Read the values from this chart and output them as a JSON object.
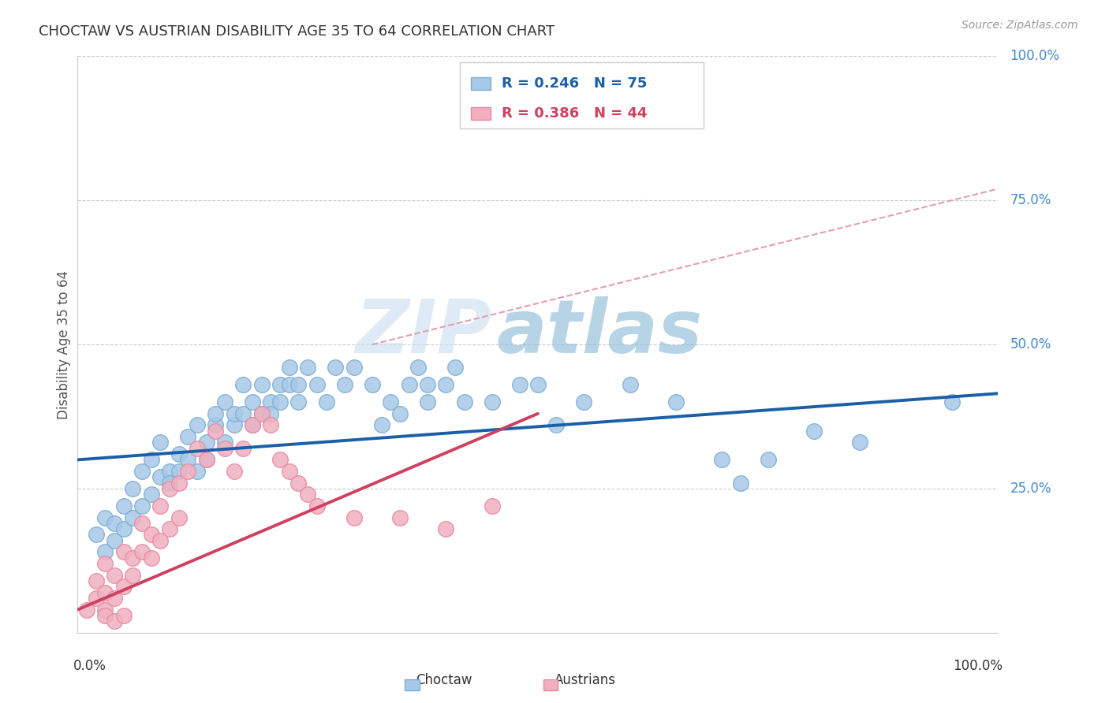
{
  "title": "CHOCTAW VS AUSTRIAN DISABILITY AGE 35 TO 64 CORRELATION CHART",
  "source": "Source: ZipAtlas.com",
  "ylabel": "Disability Age 35 to 64",
  "xlim": [
    0.0,
    1.0
  ],
  "ylim": [
    0.0,
    1.0
  ],
  "yticks": [
    0.0,
    0.25,
    0.5,
    0.75,
    1.0
  ],
  "ytick_labels": [
    "",
    "25.0%",
    "50.0%",
    "75.0%",
    "100.0%"
  ],
  "choctaw_R": 0.246,
  "choctaw_N": 75,
  "austrians_R": 0.386,
  "austrians_N": 44,
  "choctaw_color": "#a8c8e8",
  "austrians_color": "#f0b0c0",
  "choctaw_edge_color": "#7aaed0",
  "austrians_edge_color": "#e888a0",
  "choctaw_line_color": "#1a5fa8",
  "austrians_line_color": "#d04060",
  "dashed_line_color": "#e0a0b0",
  "label_color": "#4488cc",
  "background_color": "#ffffff",
  "watermark_zip": "ZIP",
  "watermark_atlas": "atlas",
  "choctaw_points": [
    [
      0.02,
      0.17
    ],
    [
      0.03,
      0.2
    ],
    [
      0.03,
      0.14
    ],
    [
      0.04,
      0.19
    ],
    [
      0.04,
      0.16
    ],
    [
      0.05,
      0.22
    ],
    [
      0.05,
      0.18
    ],
    [
      0.06,
      0.25
    ],
    [
      0.06,
      0.2
    ],
    [
      0.07,
      0.22
    ],
    [
      0.07,
      0.28
    ],
    [
      0.08,
      0.24
    ],
    [
      0.08,
      0.3
    ],
    [
      0.09,
      0.27
    ],
    [
      0.09,
      0.33
    ],
    [
      0.1,
      0.28
    ],
    [
      0.1,
      0.26
    ],
    [
      0.11,
      0.31
    ],
    [
      0.11,
      0.28
    ],
    [
      0.12,
      0.34
    ],
    [
      0.12,
      0.3
    ],
    [
      0.13,
      0.28
    ],
    [
      0.13,
      0.36
    ],
    [
      0.14,
      0.33
    ],
    [
      0.14,
      0.3
    ],
    [
      0.15,
      0.36
    ],
    [
      0.15,
      0.38
    ],
    [
      0.16,
      0.33
    ],
    [
      0.16,
      0.4
    ],
    [
      0.17,
      0.36
    ],
    [
      0.17,
      0.38
    ],
    [
      0.18,
      0.38
    ],
    [
      0.18,
      0.43
    ],
    [
      0.19,
      0.36
    ],
    [
      0.19,
      0.4
    ],
    [
      0.2,
      0.38
    ],
    [
      0.2,
      0.43
    ],
    [
      0.21,
      0.4
    ],
    [
      0.21,
      0.38
    ],
    [
      0.22,
      0.43
    ],
    [
      0.22,
      0.4
    ],
    [
      0.23,
      0.43
    ],
    [
      0.23,
      0.46
    ],
    [
      0.24,
      0.4
    ],
    [
      0.24,
      0.43
    ],
    [
      0.25,
      0.46
    ],
    [
      0.26,
      0.43
    ],
    [
      0.27,
      0.4
    ],
    [
      0.28,
      0.46
    ],
    [
      0.29,
      0.43
    ],
    [
      0.3,
      0.46
    ],
    [
      0.32,
      0.43
    ],
    [
      0.33,
      0.36
    ],
    [
      0.34,
      0.4
    ],
    [
      0.35,
      0.38
    ],
    [
      0.36,
      0.43
    ],
    [
      0.37,
      0.46
    ],
    [
      0.38,
      0.4
    ],
    [
      0.38,
      0.43
    ],
    [
      0.4,
      0.43
    ],
    [
      0.41,
      0.46
    ],
    [
      0.42,
      0.4
    ],
    [
      0.45,
      0.4
    ],
    [
      0.48,
      0.43
    ],
    [
      0.5,
      0.43
    ],
    [
      0.52,
      0.36
    ],
    [
      0.55,
      0.4
    ],
    [
      0.6,
      0.43
    ],
    [
      0.65,
      0.4
    ],
    [
      0.7,
      0.3
    ],
    [
      0.72,
      0.26
    ],
    [
      0.75,
      0.3
    ],
    [
      0.8,
      0.35
    ],
    [
      0.85,
      0.33
    ],
    [
      0.95,
      0.4
    ]
  ],
  "austrians_points": [
    [
      0.01,
      0.04
    ],
    [
      0.02,
      0.06
    ],
    [
      0.02,
      0.09
    ],
    [
      0.03,
      0.04
    ],
    [
      0.03,
      0.07
    ],
    [
      0.03,
      0.12
    ],
    [
      0.03,
      0.03
    ],
    [
      0.04,
      0.06
    ],
    [
      0.04,
      0.1
    ],
    [
      0.04,
      0.02
    ],
    [
      0.05,
      0.08
    ],
    [
      0.05,
      0.14
    ],
    [
      0.05,
      0.03
    ],
    [
      0.06,
      0.1
    ],
    [
      0.06,
      0.13
    ],
    [
      0.07,
      0.14
    ],
    [
      0.07,
      0.19
    ],
    [
      0.08,
      0.13
    ],
    [
      0.08,
      0.17
    ],
    [
      0.09,
      0.16
    ],
    [
      0.09,
      0.22
    ],
    [
      0.1,
      0.18
    ],
    [
      0.1,
      0.25
    ],
    [
      0.11,
      0.2
    ],
    [
      0.11,
      0.26
    ],
    [
      0.12,
      0.28
    ],
    [
      0.13,
      0.32
    ],
    [
      0.14,
      0.3
    ],
    [
      0.15,
      0.35
    ],
    [
      0.16,
      0.32
    ],
    [
      0.17,
      0.28
    ],
    [
      0.18,
      0.32
    ],
    [
      0.19,
      0.36
    ],
    [
      0.2,
      0.38
    ],
    [
      0.21,
      0.36
    ],
    [
      0.22,
      0.3
    ],
    [
      0.23,
      0.28
    ],
    [
      0.24,
      0.26
    ],
    [
      0.25,
      0.24
    ],
    [
      0.26,
      0.22
    ],
    [
      0.3,
      0.2
    ],
    [
      0.35,
      0.2
    ],
    [
      0.4,
      0.18
    ],
    [
      0.45,
      0.22
    ]
  ],
  "choctaw_trendline": [
    [
      0.0,
      0.3
    ],
    [
      1.0,
      0.415
    ]
  ],
  "austrians_trendline": [
    [
      0.0,
      0.04
    ],
    [
      0.5,
      0.38
    ]
  ],
  "dashed_trendline": [
    [
      0.32,
      0.5
    ],
    [
      1.0,
      0.77
    ]
  ]
}
